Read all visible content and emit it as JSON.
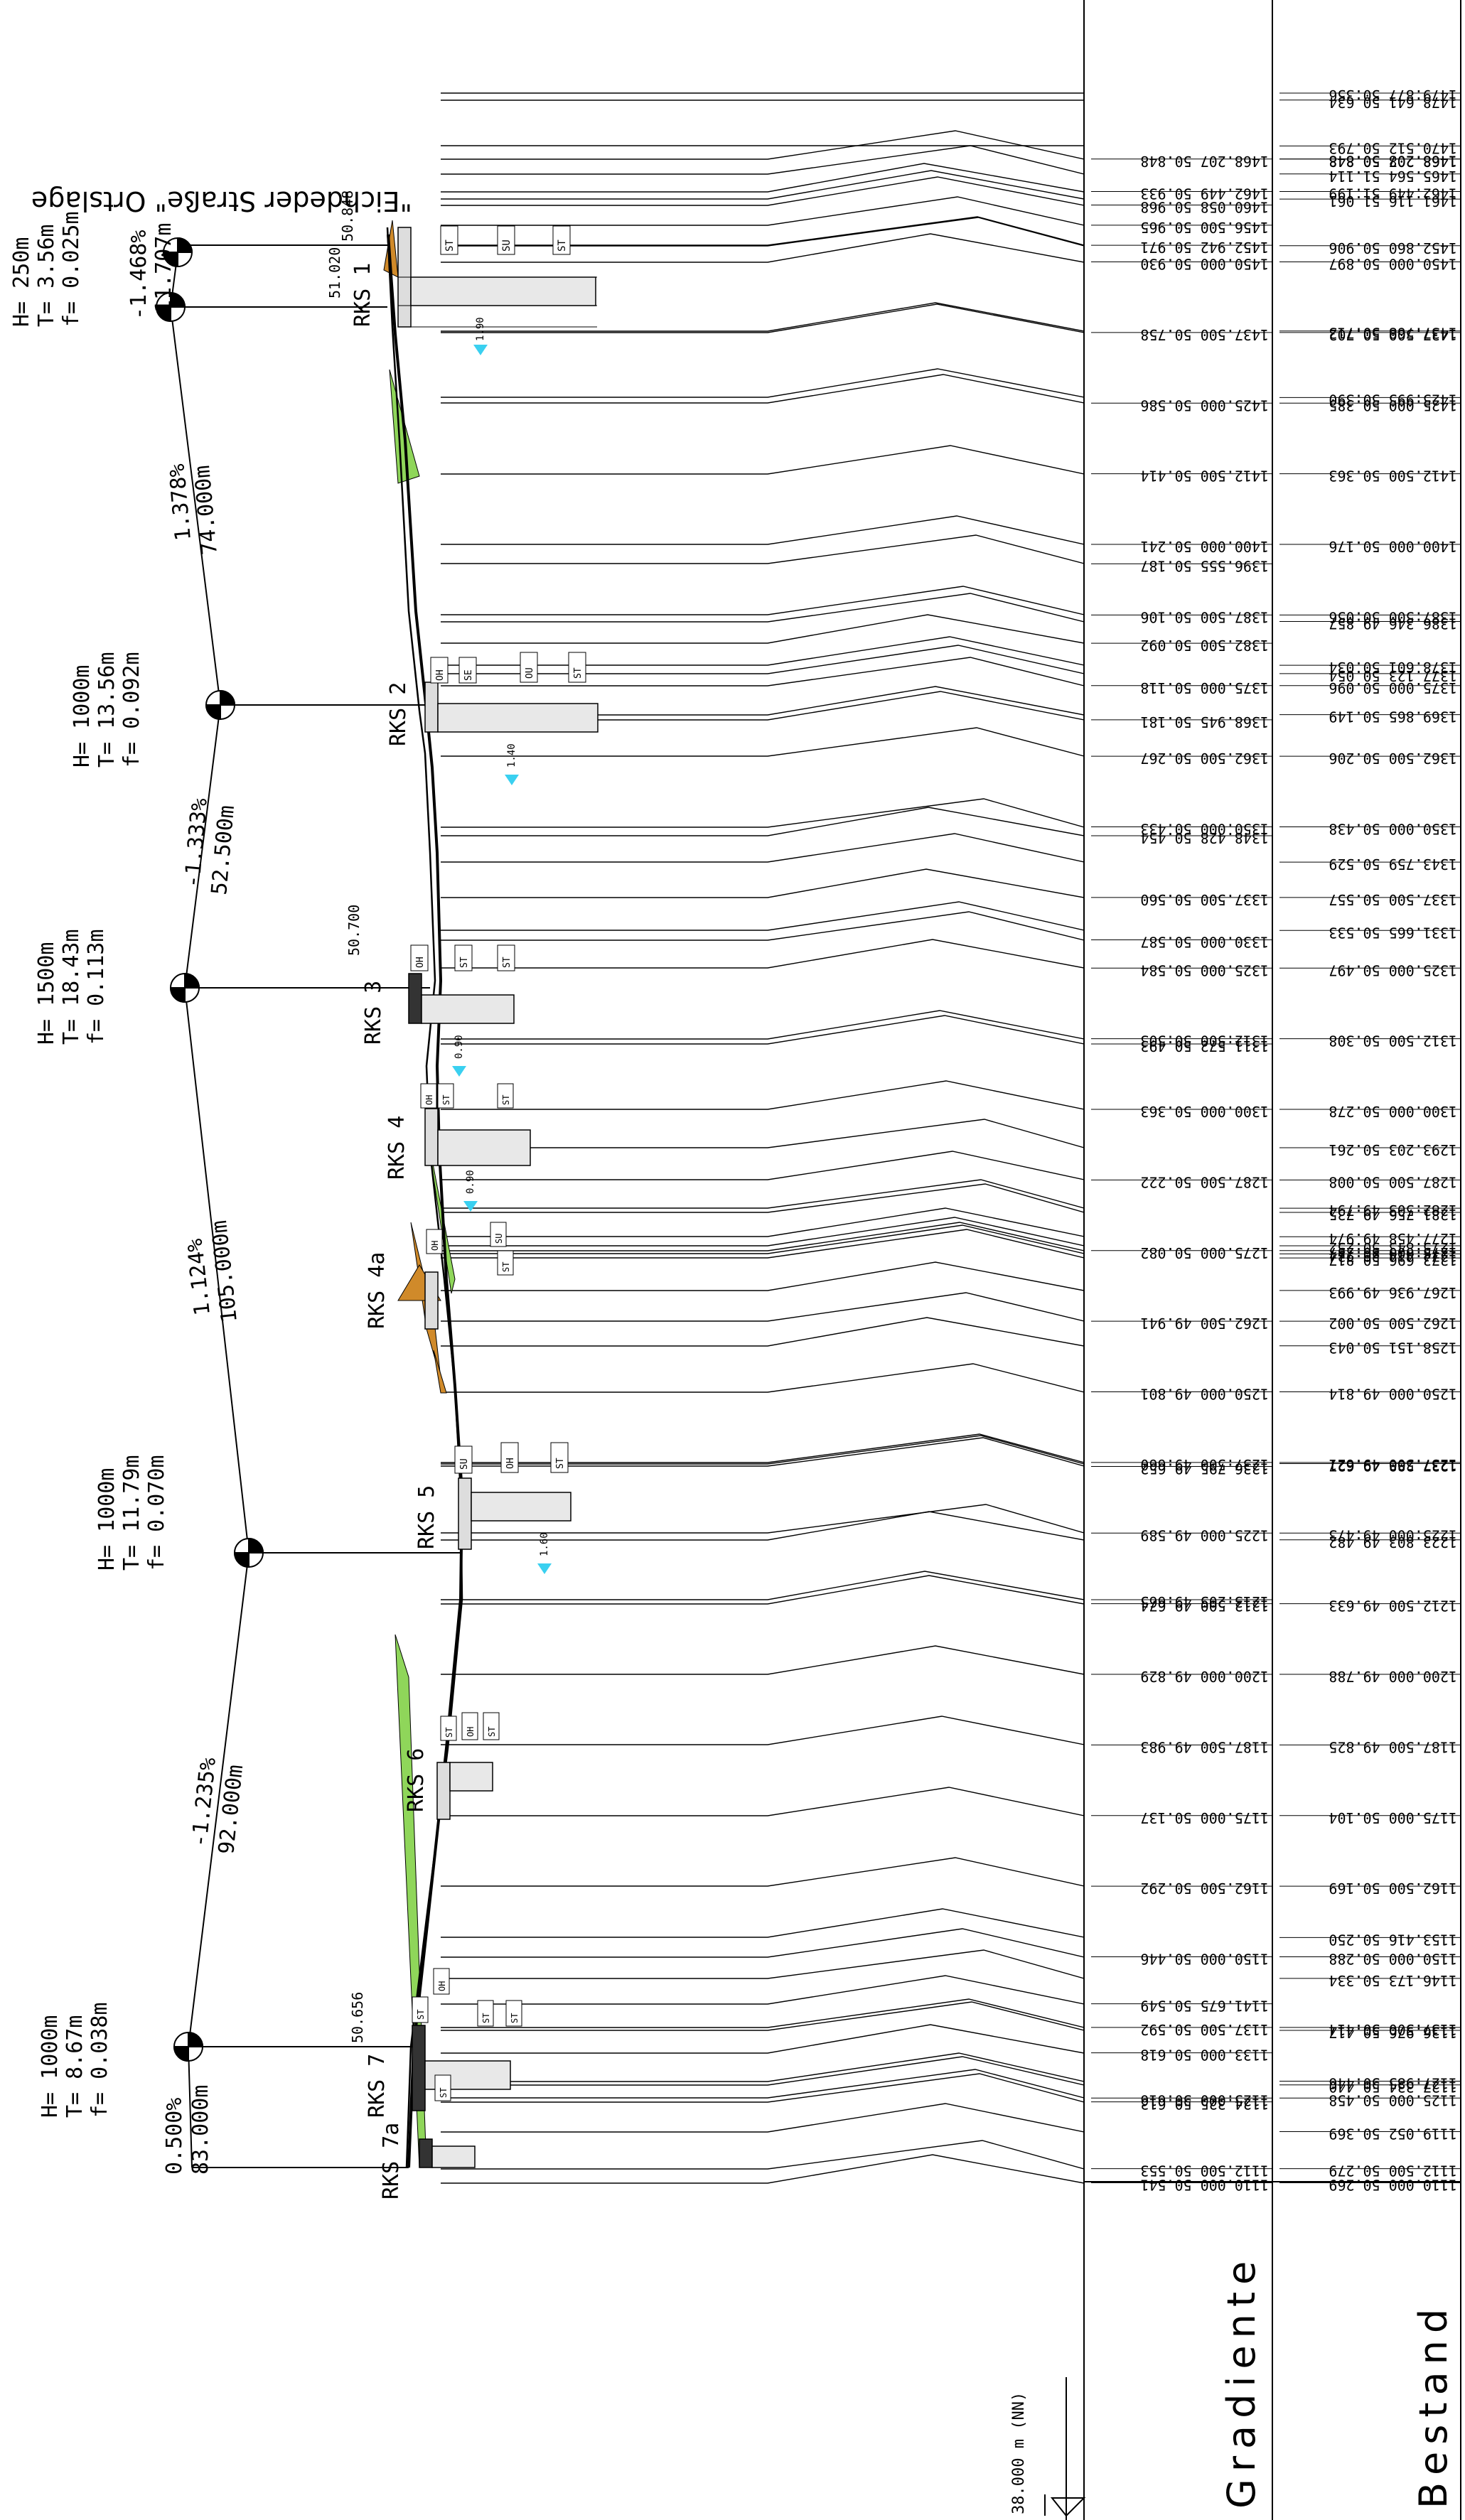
{
  "datum_label": "38.000 m (NN)",
  "table_headers": {
    "gradient": "Gradiente",
    "existing": "Bestand"
  },
  "street_label": "\"Eichdeder Straße\" Ortslage",
  "street_top_elev": "50.848",
  "rks_labels": [
    "RKS 1",
    "RKS 2",
    "RKS 3",
    "RKS 4",
    "RKS 4a",
    "RKS 5",
    "RKS 6",
    "RKS 7",
    "RKS 7a"
  ],
  "rks_elevations": {
    "rks1": "51.020",
    "rks3": "50.700",
    "rks7": "50.656"
  },
  "slopes": [
    {
      "grade": "-1.468%",
      "length": "11.707m"
    },
    {
      "grade": "1.378%",
      "length": "74.000m"
    },
    {
      "grade": "-1.333%",
      "length": "52.500m"
    },
    {
      "grade": "1.124%",
      "length": "105.000m"
    },
    {
      "grade": "-1.235%",
      "length": "92.000m"
    },
    {
      "grade": "0.500%",
      "length": "83.000m"
    }
  ],
  "curves": [
    {
      "H": "H=    250m",
      "T": "T=   3.56m",
      "f": "f=  0.025m"
    },
    {
      "H": "H=   1000m",
      "T": "T=  13.56m",
      "f": "f=  0.092m"
    },
    {
      "H": "H=   1500m",
      "T": "T=  18.43m",
      "f": "f=  0.113m"
    },
    {
      "H": "H=   1000m",
      "T": "T=  11.79m",
      "f": "f=  0.070m"
    },
    {
      "H": "H=   1000m",
      "T": "T=   8.67m",
      "f": "f=  0.038m"
    }
  ],
  "soil_codes": [
    "ST",
    "SU",
    "ST",
    "OH",
    "SE",
    "OU",
    "ST",
    "OH",
    "ST",
    "ST",
    "OH",
    "ST",
    "ST",
    "OH",
    "SU",
    "ST",
    "SU",
    "OH",
    "ST",
    "ST",
    "OH",
    "ST",
    "ST",
    "OH",
    "ST",
    "ST",
    "ST"
  ],
  "depth_marks": [
    "1.90",
    "1.40",
    "0.90",
    "0.90",
    "1.60"
  ],
  "existing_rows": [
    [
      "1479.877",
      "50.356"
    ],
    [
      "1478.641",
      "50.634"
    ],
    [
      "1470.512",
      "50.793"
    ],
    [
      "1468.208",
      "50.848"
    ],
    [
      "1468.207",
      "50.848"
    ],
    [
      "1465.564",
      "51.114"
    ],
    [
      "1462.449",
      "51.199"
    ],
    [
      "1461.116",
      "51.061"
    ],
    [
      "1452.860",
      "50.906"
    ],
    [
      "1450.000",
      "50.897"
    ],
    [
      "1437.768",
      "50.713"
    ],
    [
      "1437.500",
      "50.702"
    ],
    [
      "1425.995",
      "50.390"
    ],
    [
      "1425.000",
      "50.385"
    ],
    [
      "1412.500",
      "50.363"
    ],
    [
      "1400.000",
      "50.176"
    ],
    [
      "1387.500",
      "50.056"
    ],
    [
      "1386.346",
      "49.857"
    ],
    [
      "1378.601",
      "50.034"
    ],
    [
      "1377.123",
      "50.054"
    ],
    [
      "1375.000",
      "50.096"
    ],
    [
      "1369.865",
      "50.149"
    ],
    [
      "1362.500",
      "50.206"
    ],
    [
      "1350.000",
      "50.438"
    ],
    [
      "1343.759",
      "50.529"
    ],
    [
      "1337.500",
      "50.557"
    ],
    [
      "1331.665",
      "50.533"
    ],
    [
      "1325.000",
      "50.497"
    ],
    [
      "1312.500",
      "50.308"
    ],
    [
      "1300.000",
      "50.278"
    ],
    [
      "1293.203",
      "50.261"
    ],
    [
      "1287.500",
      "50.008"
    ],
    [
      "1282.503",
      "49.794"
    ],
    [
      "1281.756",
      "49.735"
    ],
    [
      "1277.458",
      "49.974"
    ],
    [
      "1275.843",
      "50.252"
    ],
    [
      "1275.000",
      "50.257"
    ],
    [
      "1274.414",
      "50.734"
    ],
    [
      "1273.696",
      "50.817"
    ],
    [
      "1267.936",
      "49.993"
    ],
    [
      "1262.500",
      "50.002"
    ],
    [
      "1258.151",
      "50.043"
    ],
    [
      "1250.000",
      "49.814"
    ],
    [
      "1237.500",
      "49.621"
    ],
    [
      "1237.288",
      "49.627"
    ],
    [
      "1225.000",
      "49.473"
    ],
    [
      "1223.803",
      "49.482"
    ],
    [
      "1212.500",
      "49.633"
    ],
    [
      "1200.000",
      "49.788"
    ],
    [
      "1187.500",
      "49.825"
    ],
    [
      "1175.000",
      "50.104"
    ],
    [
      "1162.500",
      "50.169"
    ],
    [
      "1153.416",
      "50.250"
    ],
    [
      "1150.000",
      "50.288"
    ],
    [
      "1146.173",
      "50.334"
    ],
    [
      "1137.500",
      "50.414"
    ],
    [
      "1136.976",
      "50.417"
    ],
    [
      "1127.985",
      "50.446"
    ],
    [
      "1127.334",
      "50.440"
    ],
    [
      "1125.000",
      "50.458"
    ],
    [
      "1119.052",
      "50.369"
    ],
    [
      "1112.500",
      "50.279"
    ],
    [
      "1110.000",
      "50.269"
    ]
  ],
  "gradient_rows": [
    [
      "1468.207",
      "50.848"
    ],
    [
      "1462.449",
      "50.933"
    ],
    [
      "1460.058",
      "50.968"
    ],
    [
      "1456.500",
      "50.965"
    ],
    [
      "1452.942",
      "50.971"
    ],
    [
      "1450.000",
      "50.930"
    ],
    [
      "1437.500",
      "50.758"
    ],
    [
      "1425.000",
      "50.586"
    ],
    [
      "1412.500",
      "50.414"
    ],
    [
      "1400.000",
      "50.241"
    ],
    [
      "1396.555",
      "50.187"
    ],
    [
      "1387.500",
      "50.106"
    ],
    [
      "1382.500",
      "50.092"
    ],
    [
      "1375.000",
      "50.118"
    ],
    [
      "1368.945",
      "50.181"
    ],
    [
      "1362.500",
      "50.267"
    ],
    [
      "1350.000",
      "50.433"
    ],
    [
      "1348.428",
      "50.454"
    ],
    [
      "1337.500",
      "50.560"
    ],
    [
      "1330.000",
      "50.587"
    ],
    [
      "1325.000",
      "50.584"
    ],
    [
      "1312.500",
      "50.503"
    ],
    [
      "1311.572",
      "50.493"
    ],
    [
      "1300.000",
      "50.363"
    ],
    [
      "1287.500",
      "50.222"
    ],
    [
      "1275.000",
      "50.082"
    ],
    [
      "1262.500",
      "49.941"
    ],
    [
      "1250.000",
      "49.801"
    ],
    [
      "1237.500",
      "49.660"
    ],
    [
      "1236.795",
      "49.652"
    ],
    [
      "1225.000",
      "49.589"
    ],
    [
      "1213.205",
      "49.665"
    ],
    [
      "1212.500",
      "49.674"
    ],
    [
      "1200.000",
      "49.829"
    ],
    [
      "1187.500",
      "49.983"
    ],
    [
      "1175.000",
      "50.137"
    ],
    [
      "1162.500",
      "50.292"
    ],
    [
      "1150.000",
      "50.446"
    ],
    [
      "1141.675",
      "50.549"
    ],
    [
      "1137.500",
      "50.592"
    ],
    [
      "1133.000",
      "50.618"
    ],
    [
      "1125.000",
      "50.616"
    ],
    [
      "1124.325",
      "50.613"
    ],
    [
      "1112.500",
      "50.553"
    ],
    [
      "1110.000",
      "50.541"
    ]
  ]
}
